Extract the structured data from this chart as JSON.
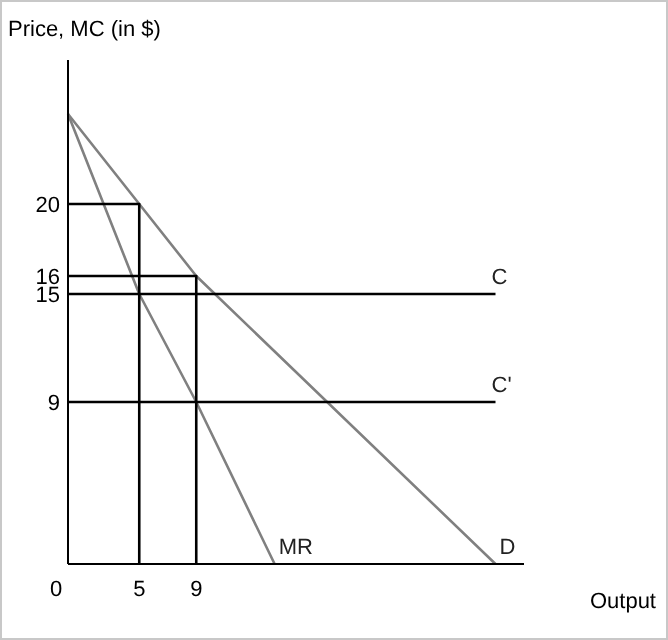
{
  "chart_data": {
    "type": "line",
    "ylabel": "Price, MC (in $)",
    "xlabel": "Output",
    "xlim": [
      0,
      32
    ],
    "ylim": [
      0,
      28
    ],
    "xticks": [
      0,
      5,
      9
    ],
    "yticks": [
      9,
      15,
      16,
      20
    ],
    "grid": false,
    "marker": "none",
    "line_style": "solid",
    "series": [
      {
        "name": "D",
        "color": "#808080",
        "x": [
          0,
          5,
          9,
          30
        ],
        "values": [
          25,
          20,
          16,
          0
        ]
      },
      {
        "name": "MR",
        "color": "#808080",
        "x": [
          0,
          5,
          9,
          14.5
        ],
        "values": [
          25,
          15,
          9,
          0
        ]
      },
      {
        "name": "C",
        "color": "#000000",
        "x": [
          0,
          30
        ],
        "values": [
          15,
          15
        ]
      },
      {
        "name": "C'",
        "color": "#000000",
        "x": [
          0,
          30
        ],
        "values": [
          9,
          9
        ]
      },
      {
        "color": "#000000",
        "x": [
          0,
          5,
          5
        ],
        "values": [
          20,
          20,
          0
        ]
      },
      {
        "color": "#000000",
        "x": [
          0,
          9,
          9
        ],
        "values": [
          16,
          16,
          0
        ]
      }
    ]
  }
}
